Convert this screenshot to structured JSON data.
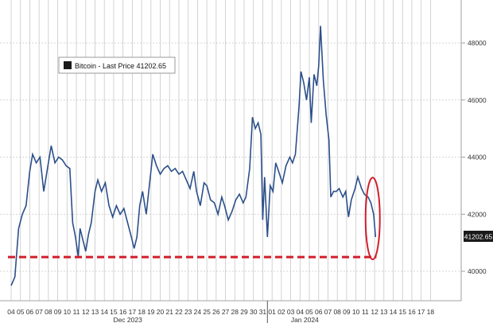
{
  "legend": {
    "label": "Bitcoin - Last Price 41202.65",
    "swatch_color": "#1a1a1a"
  },
  "last_price_tag": "41202.65",
  "colors": {
    "line": "#2b4f8a",
    "support_line": "#d21f2b",
    "highlight_ellipse": "#d21f2b",
    "grid": "#c8c8c8",
    "tag_background": "#1a1a1a",
    "tag_text": "#ffffff",
    "axis_text": "#333333"
  },
  "chart_data": {
    "type": "line",
    "title": "",
    "xlabel": "",
    "ylabel": "",
    "ylim": [
      39000,
      49000
    ],
    "y_ticks": [
      "48000",
      "46000",
      "44000",
      "42000",
      "40000"
    ],
    "y_tick_values": [
      48000,
      46000,
      44000,
      42000,
      40000
    ],
    "x_day_labels": [
      "04",
      "05",
      "06",
      "07",
      "08",
      "09",
      "10",
      "11",
      "12",
      "13",
      "14",
      "15",
      "16",
      "17",
      "18",
      "19",
      "20",
      "21",
      "22",
      "23",
      "24",
      "25",
      "26",
      "27",
      "28",
      "29",
      "30",
      "31",
      "01",
      "02",
      "03",
      "04",
      "05",
      "06",
      "07",
      "08",
      "09",
      "10",
      "11",
      "12",
      "13",
      "14",
      "15",
      "16",
      "17",
      "18"
    ],
    "x_month_labels": [
      {
        "label": "Dec 2023",
        "day_index": 12
      },
      {
        "label": "Jan 2024",
        "day_index": 31
      }
    ],
    "year_divider_index": 27.5,
    "series": [
      {
        "values": [
          [
            0,
            39500
          ],
          [
            0.4,
            39800
          ],
          [
            0.8,
            41500
          ],
          [
            1.2,
            42000
          ],
          [
            1.6,
            42300
          ],
          [
            2.0,
            43500
          ],
          [
            2.3,
            44100
          ],
          [
            2.7,
            43800
          ],
          [
            3.1,
            44000
          ],
          [
            3.5,
            42800
          ],
          [
            3.9,
            43600
          ],
          [
            4.3,
            44400
          ],
          [
            4.7,
            43800
          ],
          [
            5.1,
            44000
          ],
          [
            5.5,
            43900
          ],
          [
            5.9,
            43700
          ],
          [
            6.3,
            43600
          ],
          [
            6.6,
            41700
          ],
          [
            6.9,
            41200
          ],
          [
            7.2,
            40500
          ],
          [
            7.4,
            41500
          ],
          [
            7.7,
            41100
          ],
          [
            8.0,
            40700
          ],
          [
            8.3,
            41300
          ],
          [
            8.6,
            41700
          ],
          [
            9.0,
            42800
          ],
          [
            9.3,
            43200
          ],
          [
            9.7,
            42800
          ],
          [
            10.1,
            43100
          ],
          [
            10.5,
            42300
          ],
          [
            10.9,
            41900
          ],
          [
            11.3,
            42300
          ],
          [
            11.7,
            42000
          ],
          [
            12.1,
            42200
          ],
          [
            12.5,
            41700
          ],
          [
            12.9,
            41200
          ],
          [
            13.2,
            40800
          ],
          [
            13.5,
            41200
          ],
          [
            13.8,
            42300
          ],
          [
            14.1,
            42800
          ],
          [
            14.5,
            42000
          ],
          [
            14.9,
            43200
          ],
          [
            15.2,
            44100
          ],
          [
            15.6,
            43700
          ],
          [
            16.0,
            43400
          ],
          [
            16.4,
            43600
          ],
          [
            16.8,
            43700
          ],
          [
            17.2,
            43500
          ],
          [
            17.6,
            43600
          ],
          [
            18.0,
            43400
          ],
          [
            18.4,
            43500
          ],
          [
            18.8,
            43200
          ],
          [
            19.2,
            42900
          ],
          [
            19.6,
            43500
          ],
          [
            19.9,
            42800
          ],
          [
            20.3,
            42300
          ],
          [
            20.7,
            43100
          ],
          [
            21.0,
            43000
          ],
          [
            21.4,
            42500
          ],
          [
            21.8,
            42400
          ],
          [
            22.2,
            42000
          ],
          [
            22.6,
            42600
          ],
          [
            22.9,
            42300
          ],
          [
            23.3,
            41800
          ],
          [
            23.7,
            42100
          ],
          [
            24.1,
            42500
          ],
          [
            24.5,
            42700
          ],
          [
            24.9,
            42400
          ],
          [
            25.2,
            42600
          ],
          [
            25.6,
            43600
          ],
          [
            25.9,
            45400
          ],
          [
            26.2,
            45000
          ],
          [
            26.5,
            45200
          ],
          [
            26.8,
            44800
          ],
          [
            27.0,
            41800
          ],
          [
            27.2,
            43300
          ],
          [
            27.5,
            41200
          ],
          [
            27.8,
            43000
          ],
          [
            28.1,
            42800
          ],
          [
            28.4,
            43800
          ],
          [
            28.7,
            43500
          ],
          [
            29.1,
            43100
          ],
          [
            29.5,
            43700
          ],
          [
            29.9,
            44000
          ],
          [
            30.2,
            43800
          ],
          [
            30.5,
            44100
          ],
          [
            30.9,
            45800
          ],
          [
            31.1,
            47000
          ],
          [
            31.4,
            46600
          ],
          [
            31.7,
            46000
          ],
          [
            32.0,
            46800
          ],
          [
            32.2,
            45200
          ],
          [
            32.5,
            46900
          ],
          [
            32.8,
            46500
          ],
          [
            33.0,
            47200
          ],
          [
            33.2,
            48600
          ],
          [
            33.5,
            46700
          ],
          [
            33.8,
            45500
          ],
          [
            34.1,
            44600
          ],
          [
            34.3,
            42600
          ],
          [
            34.6,
            42800
          ],
          [
            34.9,
            42800
          ],
          [
            35.2,
            42900
          ],
          [
            35.6,
            42600
          ],
          [
            35.9,
            42800
          ],
          [
            36.2,
            41900
          ],
          [
            36.5,
            42500
          ],
          [
            36.9,
            42900
          ],
          [
            37.2,
            43300
          ],
          [
            37.6,
            42900
          ],
          [
            37.9,
            42700
          ],
          [
            38.3,
            42600
          ],
          [
            38.6,
            42400
          ],
          [
            38.9,
            42000
          ],
          [
            39.1,
            41200
          ]
        ]
      }
    ],
    "support_level": 40500,
    "highlight": {
      "day_index": 38.8,
      "value_top": 43200,
      "value_bottom": 40500
    }
  }
}
